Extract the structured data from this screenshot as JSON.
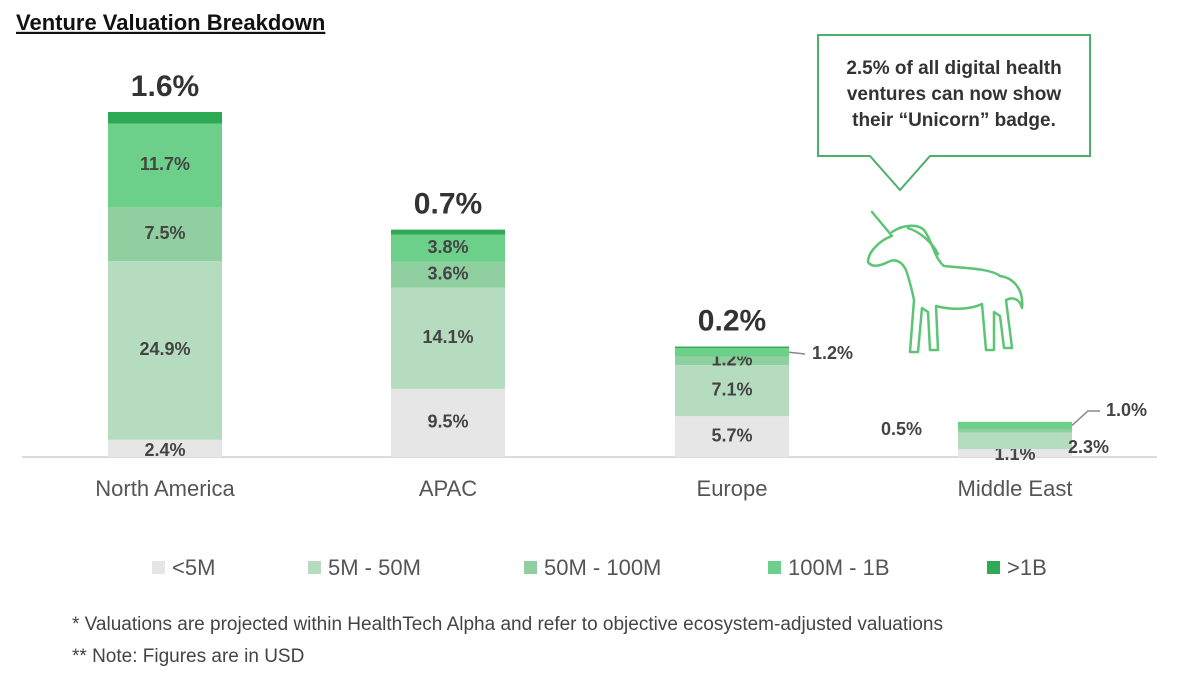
{
  "chart_data": {
    "type": "stacked-bar",
    "title": "Venture Valuation Breakdown",
    "categories": [
      "North America",
      "APAC",
      "Europe",
      "Middle East"
    ],
    "series": [
      {
        "name": "<5M",
        "color": "#e6e6e6",
        "values": [
          2.4,
          9.5,
          5.7,
          1.1
        ],
        "value_labels": [
          "2.4%",
          "9.5%",
          "5.7%",
          "1.1%"
        ]
      },
      {
        "name": "5M - 50M",
        "color": "#b6dcbf",
        "values": [
          24.9,
          14.1,
          7.1,
          2.3
        ],
        "value_labels": [
          "24.9%",
          "14.1%",
          "7.1%",
          "2.3%"
        ]
      },
      {
        "name": "50M - 100M",
        "color": "#90cf9f",
        "values": [
          7.5,
          3.6,
          1.2,
          0.5
        ],
        "value_labels": [
          "7.5%",
          "3.6%",
          "1.2%",
          "0.5%"
        ]
      },
      {
        "name": "100M - 1B",
        "color": "#6dd08a",
        "values": [
          11.7,
          3.8,
          1.2,
          1.0
        ],
        "value_labels": [
          "11.7%",
          "3.8%",
          "1.2%",
          "1.0%"
        ]
      },
      {
        "name": ">1B",
        "color": "#2eaa55",
        "values": [
          1.6,
          0.7,
          0.2,
          null
        ],
        "value_labels": [
          "1.6%",
          "0.7%",
          "0.2%",
          null
        ]
      }
    ],
    "annotation": "2.5% of all digital health ventures can now show their “Unicorn” badge.",
    "footnotes": [
      "* Valuations are projected within HealthTech Alpha and refer to objective ecosystem-adjusted valuations",
      "** Note:  Figures are in USD"
    ]
  }
}
